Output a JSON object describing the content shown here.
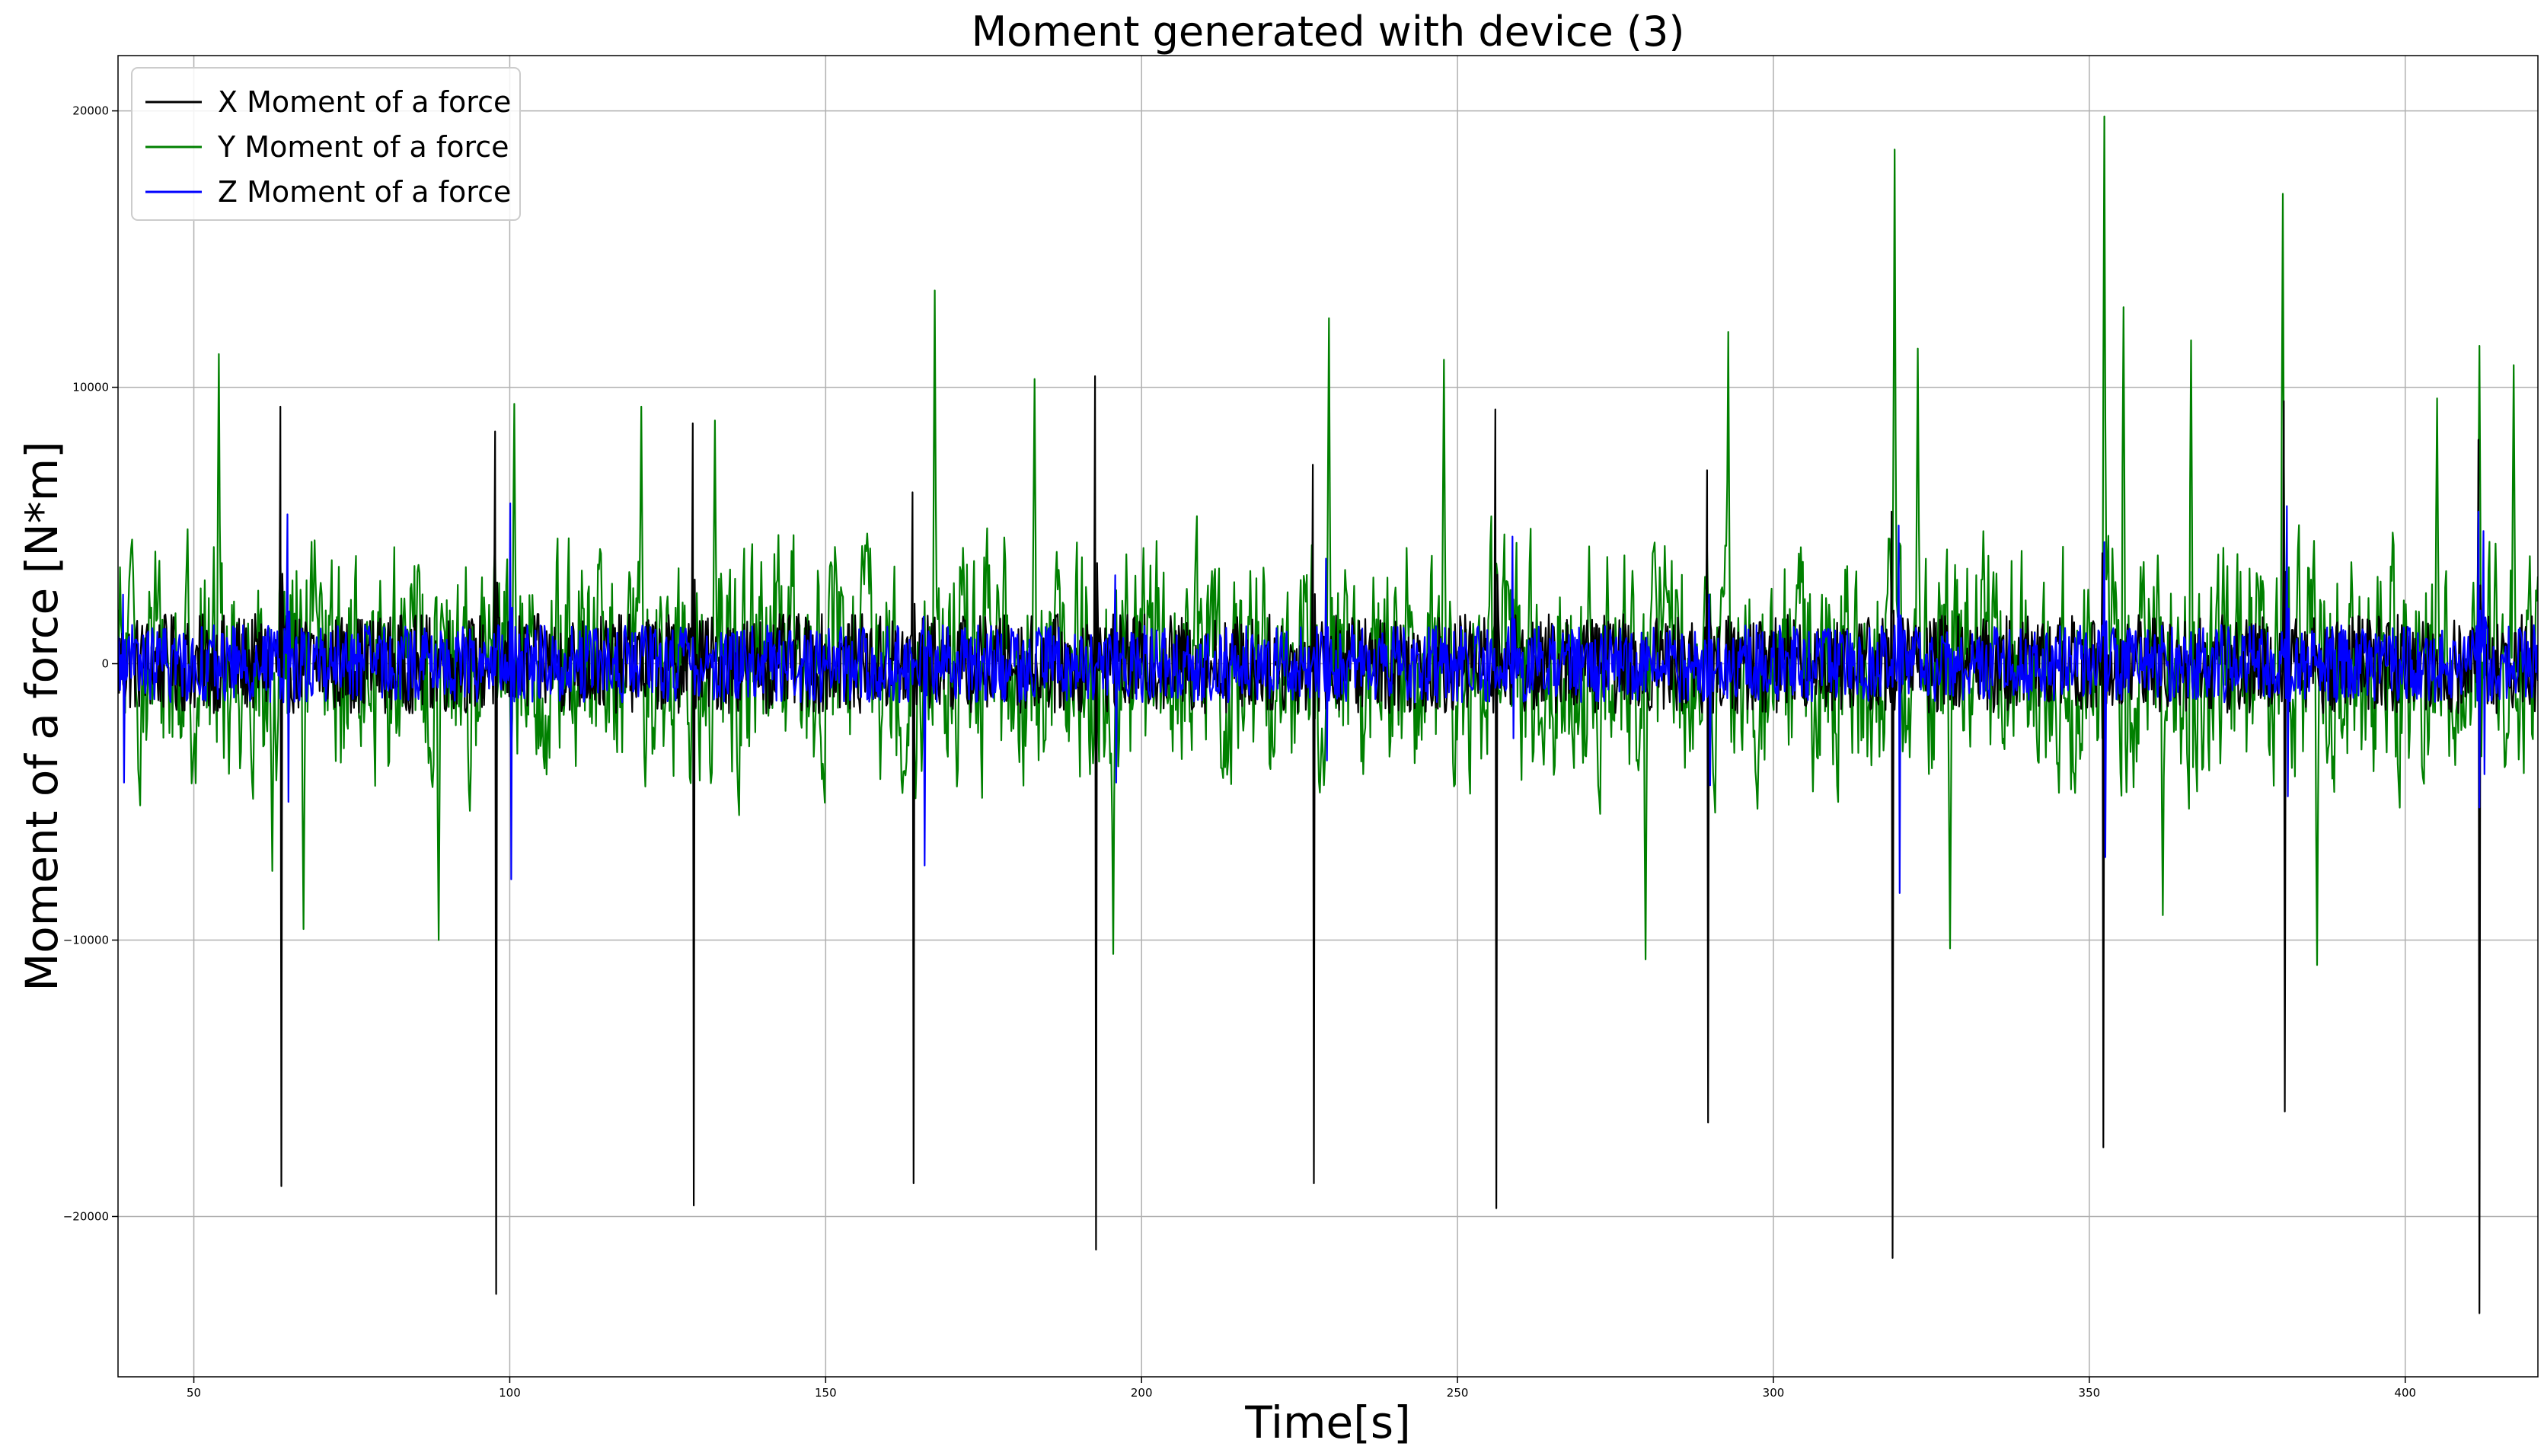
{
  "chart_data": {
    "type": "line",
    "title": "Moment generated with device (3)",
    "xlabel": "Time[s]",
    "ylabel": "Moment of a force [N*m]",
    "xlim": [
      38,
      421
    ],
    "ylim": [
      -25800,
      22000
    ],
    "x_ticks": [
      50,
      100,
      150,
      200,
      250,
      300,
      350,
      400
    ],
    "y_ticks": [
      -20000,
      -10000,
      0,
      10000,
      20000
    ],
    "grid": true,
    "legend_position": "upper-left",
    "series": [
      {
        "name": "X Moment of a force",
        "color": "#000000",
        "baseline_amplitude": 1800,
        "spikes": [
          {
            "x": 63.9,
            "min": -18900,
            "max": 9300
          },
          {
            "x": 97.9,
            "min": -22800,
            "max": 8400
          },
          {
            "x": 129.1,
            "min": -19600,
            "max": 8700
          },
          {
            "x": 163.9,
            "min": -18800,
            "max": 6200
          },
          {
            "x": 192.8,
            "min": -21200,
            "max": 10400
          },
          {
            "x": 227.2,
            "min": -18800,
            "max": 7200
          },
          {
            "x": 256.1,
            "min": -19700,
            "max": 9200
          },
          {
            "x": 289.7,
            "min": -16600,
            "max": 7000
          },
          {
            "x": 318.9,
            "min": -21500,
            "max": 5500
          },
          {
            "x": 352.2,
            "min": -17500,
            "max": 4000
          },
          {
            "x": 380.9,
            "min": -16200,
            "max": 9500
          },
          {
            "x": 411.8,
            "min": -23500,
            "max": 8100
          }
        ]
      },
      {
        "name": "Y Moment of a force",
        "color": "#008000",
        "baseline_amplitude": 5000,
        "peaks": [
          {
            "x": 54.0,
            "y": 11200
          },
          {
            "x": 62.4,
            "y": -7500
          },
          {
            "x": 67.4,
            "y": -9600
          },
          {
            "x": 88.8,
            "y": -10000
          },
          {
            "x": 100.7,
            "y": 9400
          },
          {
            "x": 120.8,
            "y": 9300
          },
          {
            "x": 132.4,
            "y": 8800
          },
          {
            "x": 167.3,
            "y": 13500
          },
          {
            "x": 183.0,
            "y": 10300
          },
          {
            "x": 195.5,
            "y": -10500
          },
          {
            "x": 229.6,
            "y": 12500
          },
          {
            "x": 247.8,
            "y": 11000
          },
          {
            "x": 279.8,
            "y": -10700
          },
          {
            "x": 292.9,
            "y": 12000
          },
          {
            "x": 319.2,
            "y": 18600
          },
          {
            "x": 322.8,
            "y": 11400
          },
          {
            "x": 327.9,
            "y": -10300
          },
          {
            "x": 352.3,
            "y": 19800
          },
          {
            "x": 355.4,
            "y": 12900
          },
          {
            "x": 361.6,
            "y": -9100
          },
          {
            "x": 366.1,
            "y": 11700
          },
          {
            "x": 380.7,
            "y": 17000
          },
          {
            "x": 386.0,
            "y": -10900
          },
          {
            "x": 405.1,
            "y": 9600
          },
          {
            "x": 411.8,
            "y": 11500
          },
          {
            "x": 417.1,
            "y": 10800
          }
        ]
      },
      {
        "name": "Z Moment of a force",
        "color": "#0000ff",
        "baseline_amplitude": 1400,
        "spikes": [
          {
            "x": 39.0,
            "min": -4300,
            "max": 2500
          },
          {
            "x": 65.0,
            "min": -5000,
            "max": 5400
          },
          {
            "x": 100.2,
            "min": -7800,
            "max": 5800
          },
          {
            "x": 165.6,
            "min": -7300,
            "max": 1700
          },
          {
            "x": 196.0,
            "min": -4300,
            "max": 3200
          },
          {
            "x": 229.4,
            "min": -3500,
            "max": 3800
          },
          {
            "x": 258.9,
            "min": -2700,
            "max": 4600
          },
          {
            "x": 290.0,
            "min": -4400,
            "max": 2500
          },
          {
            "x": 320.0,
            "min": -8300,
            "max": 5000
          },
          {
            "x": 352.5,
            "min": -7000,
            "max": 4400
          },
          {
            "x": 381.5,
            "min": -4800,
            "max": 5700
          },
          {
            "x": 411.8,
            "min": -5200,
            "max": 5500
          },
          {
            "x": 412.6,
            "min": -4000,
            "max": 4800
          }
        ]
      }
    ]
  }
}
